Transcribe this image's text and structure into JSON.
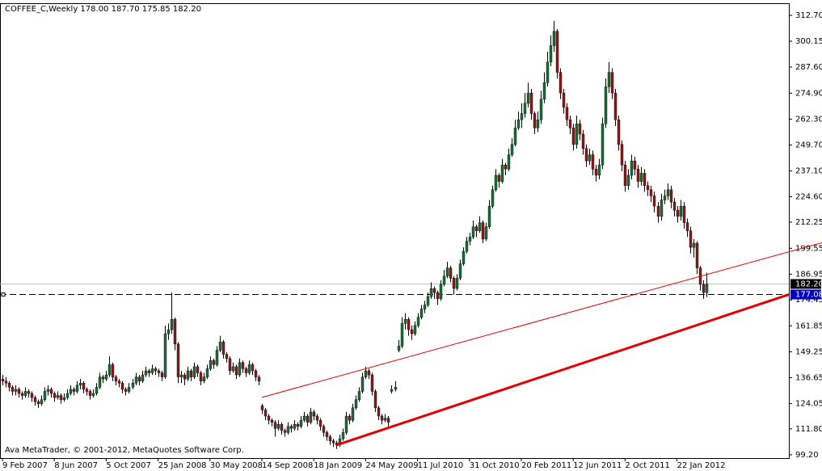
{
  "chart_data": {
    "type": "candlestick",
    "title": "COFFEE_C,Weekly  178.00 187.70 175.85 182.20",
    "footer": "Ava MetaTrader, © 2001-2012, MetaQuotes Software Corp.",
    "up_color": "#1f6b3a",
    "down_color": "#8b1a1a",
    "wick_color": "#000000",
    "xlim": [
      -0.75,
      242.5
    ],
    "ylim": [
      97.6,
      318.6
    ],
    "yticks": [
      {
        "value": 312.7,
        "label": "312.70"
      },
      {
        "value": 300.15,
        "label": "300.15"
      },
      {
        "value": 287.6,
        "label": "287.60"
      },
      {
        "value": 274.9,
        "label": "274.90"
      },
      {
        "value": 262.3,
        "label": "262.30"
      },
      {
        "value": 249.7,
        "label": "249.70"
      },
      {
        "value": 237.1,
        "label": "237.10"
      },
      {
        "value": 224.6,
        "label": "224.60"
      },
      {
        "value": 212.25,
        "label": "212.25"
      },
      {
        "value": 199.55,
        "label": "199.55"
      },
      {
        "value": 186.95,
        "label": "186.95"
      },
      {
        "value": 174.45,
        "label": "174.45"
      },
      {
        "value": 161.85,
        "label": "161.85"
      },
      {
        "value": 149.25,
        "label": "149.25"
      },
      {
        "value": 136.65,
        "label": "136.65"
      },
      {
        "value": 124.05,
        "label": "124.05"
      },
      {
        "value": 111.8,
        "label": "111.80"
      },
      {
        "value": 99.2,
        "label": "99.20"
      }
    ],
    "xticks": [
      {
        "value": 0,
        "label": "9 Feb 2007"
      },
      {
        "value": 16,
        "label": "8 Jun 2007"
      },
      {
        "value": 32,
        "label": "5 Oct 2007"
      },
      {
        "value": 48,
        "label": "25 Jan 2008"
      },
      {
        "value": 64,
        "label": "30 May 2008"
      },
      {
        "value": 80,
        "label": "14 Sep 2008"
      },
      {
        "value": 96,
        "label": "18 Jan 2009"
      },
      {
        "value": 112,
        "label": "24 May 2009"
      },
      {
        "value": 128,
        "label": "11 Jul 2010"
      },
      {
        "value": 144,
        "label": "31 Oct 2010"
      },
      {
        "value": 160,
        "label": "20 Feb 2011"
      },
      {
        "value": 176,
        "label": "12 Jun 2011"
      },
      {
        "value": 192,
        "label": "2 Oct 2011"
      },
      {
        "value": 208,
        "label": "22 Jan 2012"
      }
    ],
    "last_price": {
      "value": 182.2,
      "label": "182.20",
      "color": "#c0c0c0"
    },
    "hline": {
      "value": 177.08,
      "label": "177.08",
      "color": "#000000",
      "box_color": "#0000c0"
    },
    "trendlines": [
      {
        "x": [
          80,
          253.5
        ],
        "y": [
          127.1,
          202.6
        ],
        "color": "#e00000",
        "width": 1
      },
      {
        "x": [
          103,
          242.5
        ],
        "y": [
          103.9,
          177.08
        ],
        "color": "#e00000",
        "width": 3
      }
    ],
    "ohlc": [
      [
        136,
        138,
        133,
        135
      ],
      [
        135,
        137,
        132,
        134
      ],
      [
        134,
        135,
        130,
        132
      ],
      [
        132,
        133,
        128,
        130
      ],
      [
        130,
        133,
        128,
        131
      ],
      [
        131,
        132,
        127,
        129
      ],
      [
        129,
        130,
        126,
        128
      ],
      [
        128,
        132,
        127,
        130
      ],
      [
        130,
        131,
        127,
        129
      ],
      [
        129,
        130,
        125,
        127
      ],
      [
        127,
        128,
        123,
        125
      ],
      [
        125,
        126,
        122,
        124
      ],
      [
        124,
        128,
        123,
        126
      ],
      [
        126,
        132,
        125,
        130
      ],
      [
        130,
        133,
        128,
        131
      ],
      [
        131,
        132,
        127,
        129
      ],
      [
        129,
        130,
        125,
        127
      ],
      [
        127,
        130,
        126,
        128
      ],
      [
        128,
        129,
        124,
        126
      ],
      [
        126,
        129,
        125,
        127
      ],
      [
        127,
        131,
        126,
        129
      ],
      [
        129,
        133,
        128,
        131
      ],
      [
        131,
        132,
        128,
        130
      ],
      [
        130,
        135,
        129,
        133
      ],
      [
        133,
        136,
        131,
        134
      ],
      [
        134,
        135,
        129,
        131
      ],
      [
        131,
        132,
        128,
        130
      ],
      [
        130,
        131,
        126,
        128
      ],
      [
        128,
        131,
        127,
        129
      ],
      [
        129,
        134,
        128,
        132
      ],
      [
        132,
        139,
        131,
        137
      ],
      [
        137,
        138,
        134,
        136
      ],
      [
        136,
        140,
        135,
        138
      ],
      [
        138,
        147,
        137,
        143
      ],
      [
        143,
        144,
        135,
        137
      ],
      [
        137,
        138,
        133,
        135
      ],
      [
        135,
        136,
        132,
        134
      ],
      [
        134,
        135,
        129,
        131
      ],
      [
        131,
        132,
        128,
        130
      ],
      [
        130,
        134,
        129,
        132
      ],
      [
        132,
        136,
        131,
        134
      ],
      [
        134,
        139,
        133,
        137
      ],
      [
        137,
        138,
        133,
        135
      ],
      [
        135,
        140,
        134,
        138
      ],
      [
        138,
        142,
        137,
        140
      ],
      [
        140,
        141,
        137,
        139
      ],
      [
        139,
        143,
        138,
        141
      ],
      [
        141,
        142,
        138,
        140
      ],
      [
        140,
        141,
        137,
        139
      ],
      [
        139,
        140,
        135,
        137
      ],
      [
        137,
        162,
        136,
        158
      ],
      [
        158,
        163,
        155,
        160
      ],
      [
        160,
        178,
        158,
        165
      ],
      [
        165,
        166,
        150,
        153
      ],
      [
        153,
        154,
        134,
        137
      ],
      [
        137,
        140,
        134,
        138
      ],
      [
        138,
        139,
        133,
        136
      ],
      [
        136,
        142,
        135,
        140
      ],
      [
        140,
        141,
        135,
        137
      ],
      [
        137,
        144,
        136,
        142
      ],
      [
        142,
        143,
        137,
        139
      ],
      [
        139,
        140,
        133,
        135
      ],
      [
        135,
        139,
        134,
        137
      ],
      [
        137,
        143,
        136,
        141
      ],
      [
        141,
        147,
        140,
        145
      ],
      [
        145,
        146,
        141,
        143
      ],
      [
        143,
        152,
        142,
        150
      ],
      [
        150,
        157,
        149,
        154
      ],
      [
        154,
        155,
        146,
        148
      ],
      [
        148,
        149,
        144,
        146
      ],
      [
        146,
        147,
        138,
        140
      ],
      [
        140,
        144,
        139,
        142
      ],
      [
        142,
        143,
        136,
        138
      ],
      [
        138,
        146,
        137,
        144
      ],
      [
        144,
        145,
        139,
        141
      ],
      [
        141,
        142,
        137,
        139
      ],
      [
        139,
        145,
        138,
        143
      ],
      [
        143,
        144,
        138,
        140
      ],
      [
        140,
        141,
        135,
        137
      ],
      [
        137,
        138,
        133,
        135
      ],
      [
        123,
        124,
        119,
        121
      ],
      [
        121,
        122,
        116,
        118
      ],
      [
        118,
        119,
        114,
        116
      ],
      [
        116,
        117,
        113,
        115
      ],
      [
        115,
        116,
        108,
        112
      ],
      [
        112,
        116,
        111,
        114
      ],
      [
        114,
        115,
        109,
        111
      ],
      [
        111,
        112,
        108,
        110
      ],
      [
        110,
        115,
        109,
        113
      ],
      [
        113,
        114,
        110,
        112
      ],
      [
        112,
        116,
        111,
        114
      ],
      [
        114,
        115,
        111,
        113
      ],
      [
        113,
        118,
        112,
        116
      ],
      [
        116,
        120,
        115,
        118
      ],
      [
        118,
        119,
        113,
        115
      ],
      [
        115,
        122,
        114,
        120
      ],
      [
        120,
        121,
        116,
        118
      ],
      [
        118,
        119,
        114,
        116
      ],
      [
        116,
        117,
        111,
        113
      ],
      [
        113,
        114,
        108,
        110
      ],
      [
        110,
        111,
        106,
        108
      ],
      [
        108,
        109,
        104,
        106
      ],
      [
        106,
        107,
        103,
        105
      ],
      [
        105,
        106,
        102,
        104
      ],
      [
        104,
        109,
        103,
        107
      ],
      [
        107,
        112,
        106,
        110
      ],
      [
        110,
        120,
        109,
        118
      ],
      [
        118,
        119,
        114,
        116
      ],
      [
        116,
        124,
        115,
        122
      ],
      [
        122,
        128,
        121,
        126
      ],
      [
        126,
        132,
        125,
        130
      ],
      [
        130,
        139,
        129,
        137
      ],
      [
        137,
        142,
        136,
        140
      ],
      [
        140,
        141,
        136,
        138
      ],
      [
        138,
        139,
        128,
        130
      ],
      [
        130,
        131,
        120,
        122
      ],
      [
        122,
        123,
        116,
        118
      ],
      [
        118,
        119,
        114,
        116
      ],
      [
        116,
        119,
        115,
        117
      ],
      [
        117,
        118,
        113,
        115
      ],
      [
        130,
        133,
        129,
        131
      ],
      [
        131,
        135,
        130,
        132
      ],
      [
        150,
        155,
        149,
        152
      ],
      [
        152,
        166,
        151,
        163
      ],
      [
        163,
        168,
        160,
        165
      ],
      [
        165,
        166,
        157,
        160
      ],
      [
        160,
        162,
        155,
        158
      ],
      [
        158,
        164,
        157,
        162
      ],
      [
        162,
        168,
        161,
        166
      ],
      [
        166,
        172,
        165,
        170
      ],
      [
        170,
        174,
        168,
        172
      ],
      [
        172,
        178,
        171,
        176
      ],
      [
        176,
        183,
        175,
        180
      ],
      [
        180,
        181,
        175,
        178
      ],
      [
        178,
        179,
        172,
        175
      ],
      [
        175,
        184,
        174,
        182
      ],
      [
        182,
        189,
        181,
        186
      ],
      [
        186,
        193,
        185,
        190
      ],
      [
        190,
        191,
        183,
        185
      ],
      [
        185,
        186,
        177,
        180
      ],
      [
        180,
        187,
        179,
        185
      ],
      [
        185,
        194,
        184,
        192
      ],
      [
        192,
        200,
        191,
        198
      ],
      [
        198,
        205,
        197,
        203
      ],
      [
        203,
        207,
        201,
        205
      ],
      [
        205,
        213,
        204,
        210
      ],
      [
        210,
        211,
        205,
        208
      ],
      [
        208,
        215,
        207,
        212
      ],
      [
        212,
        213,
        202,
        204
      ],
      [
        204,
        212,
        203,
        210
      ],
      [
        210,
        223,
        209,
        220
      ],
      [
        220,
        230,
        219,
        228
      ],
      [
        228,
        238,
        227,
        235
      ],
      [
        235,
        236,
        229,
        232
      ],
      [
        232,
        243,
        231,
        240
      ],
      [
        240,
        241,
        235,
        238
      ],
      [
        238,
        248,
        237,
        245
      ],
      [
        245,
        253,
        244,
        250
      ],
      [
        250,
        262,
        249,
        258
      ],
      [
        258,
        266,
        257,
        262
      ],
      [
        262,
        270,
        258,
        265
      ],
      [
        265,
        275,
        263,
        270
      ],
      [
        270,
        280,
        268,
        275
      ],
      [
        275,
        277,
        262,
        265
      ],
      [
        265,
        266,
        255,
        258
      ],
      [
        258,
        266,
        256,
        262
      ],
      [
        262,
        276,
        260,
        272
      ],
      [
        272,
        285,
        270,
        280
      ],
      [
        280,
        295,
        278,
        290
      ],
      [
        290,
        303,
        288,
        298
      ],
      [
        298,
        310,
        295,
        305
      ],
      [
        305,
        306,
        282,
        285
      ],
      [
        285,
        287,
        272,
        275
      ],
      [
        275,
        277,
        265,
        268
      ],
      [
        268,
        270,
        259,
        262
      ],
      [
        262,
        264,
        255,
        258
      ],
      [
        258,
        260,
        247,
        250
      ],
      [
        250,
        264,
        248,
        260
      ],
      [
        260,
        262,
        252,
        255
      ],
      [
        255,
        257,
        245,
        248
      ],
      [
        248,
        250,
        239,
        242
      ],
      [
        242,
        248,
        240,
        245
      ],
      [
        245,
        247,
        235,
        238
      ],
      [
        238,
        240,
        232,
        235
      ],
      [
        235,
        243,
        233,
        240
      ],
      [
        240,
        263,
        238,
        260
      ],
      [
        260,
        282,
        258,
        278
      ],
      [
        278,
        290,
        275,
        285
      ],
      [
        285,
        287,
        272,
        275
      ],
      [
        275,
        277,
        259,
        262
      ],
      [
        262,
        264,
        247,
        250
      ],
      [
        250,
        252,
        237,
        240
      ],
      [
        240,
        242,
        227,
        230
      ],
      [
        230,
        238,
        228,
        235
      ],
      [
        235,
        245,
        233,
        242
      ],
      [
        242,
        244,
        235,
        238
      ],
      [
        238,
        240,
        229,
        232
      ],
      [
        232,
        239,
        230,
        236
      ],
      [
        236,
        238,
        227,
        230
      ],
      [
        230,
        232,
        225,
        228
      ],
      [
        228,
        230,
        222,
        225
      ],
      [
        225,
        227,
        217,
        220
      ],
      [
        220,
        222,
        212,
        215
      ],
      [
        215,
        226,
        213,
        223
      ],
      [
        223,
        228,
        221,
        225
      ],
      [
        225,
        231,
        223,
        228
      ],
      [
        228,
        230,
        219,
        222
      ],
      [
        222,
        224,
        215,
        218
      ],
      [
        218,
        220,
        212,
        215
      ],
      [
        215,
        223,
        213,
        220
      ],
      [
        220,
        222,
        209,
        212
      ],
      [
        212,
        214,
        205,
        208
      ],
      [
        208,
        210,
        197,
        200
      ],
      [
        200,
        204,
        195,
        202
      ],
      [
        202,
        203,
        187,
        190
      ],
      [
        190,
        191,
        179,
        182
      ],
      [
        182,
        184,
        175,
        178
      ],
      [
        178,
        187.7,
        175.85,
        182.2
      ]
    ]
  }
}
